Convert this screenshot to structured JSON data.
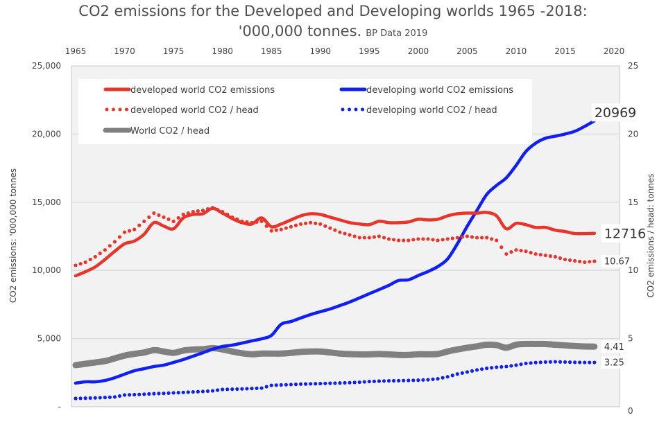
{
  "chart_data": {
    "type": "line",
    "title": "CO2 emissions for the Developed and Developing worlds 1965 -2018:",
    "title_line2": "'000,000 tonnes.",
    "subtitle": "BP Data 2019",
    "xlabel": "",
    "ylabel_left": "CO2 emissions: '000,000 tonnes",
    "ylabel_right": "CO2 emissions / head: tonnes",
    "x_ticks": [
      "1965",
      "1970",
      "1975",
      "1980",
      "1985",
      "1990",
      "1995",
      "2000",
      "2005",
      "2010",
      "2015",
      "2020"
    ],
    "xlim": [
      1965,
      2020
    ],
    "x_axis_position": "top",
    "ylim_left": [
      0,
      25000
    ],
    "y_ticks_left": [
      "-",
      "5,000",
      "10,000",
      "15,000",
      "20,000",
      "25,000"
    ],
    "ylim_right": [
      0,
      25
    ],
    "y_ticks_right": [
      "0",
      "5",
      "10",
      "15",
      "20",
      "25"
    ],
    "grid": true,
    "legend_position": "top-left",
    "x": [
      1965,
      1966,
      1967,
      1968,
      1969,
      1970,
      1971,
      1972,
      1973,
      1974,
      1975,
      1976,
      1977,
      1978,
      1979,
      1980,
      1981,
      1982,
      1983,
      1984,
      1985,
      1986,
      1987,
      1988,
      1989,
      1990,
      1991,
      1992,
      1993,
      1994,
      1995,
      1996,
      1997,
      1998,
      1999,
      2000,
      2001,
      2002,
      2003,
      2004,
      2005,
      2006,
      2007,
      2008,
      2009,
      2010,
      2011,
      2012,
      2013,
      2014,
      2015,
      2016,
      2017,
      2018
    ],
    "series": [
      {
        "name": "developed world CO2 emissions",
        "axis": "left",
        "style": "solid",
        "color": "#e8352a",
        "values": [
          9600,
          9900,
          10250,
          10800,
          11400,
          11950,
          12150,
          12650,
          13500,
          13250,
          13050,
          13850,
          14100,
          14150,
          14550,
          14200,
          13800,
          13500,
          13400,
          13850,
          13200,
          13400,
          13700,
          14000,
          14150,
          14100,
          13900,
          13700,
          13500,
          13400,
          13350,
          13600,
          13500,
          13500,
          13550,
          13750,
          13700,
          13750,
          14000,
          14150,
          14200,
          14200,
          14250,
          14000,
          13050,
          13450,
          13350,
          13150,
          13150,
          12950,
          12850,
          12700,
          12700,
          12716
        ],
        "end_label": "12716"
      },
      {
        "name": "developing world CO2 emissions",
        "axis": "left",
        "style": "solid",
        "color": "#1020f0",
        "values": [
          1730,
          1830,
          1830,
          1930,
          2130,
          2390,
          2640,
          2790,
          2950,
          3050,
          3250,
          3460,
          3710,
          3960,
          4220,
          4420,
          4520,
          4670,
          4830,
          4980,
          5230,
          6050,
          6250,
          6510,
          6760,
          6970,
          7170,
          7420,
          7680,
          7980,
          8290,
          8590,
          8900,
          9260,
          9310,
          9620,
          9920,
          10280,
          10840,
          11950,
          13230,
          14400,
          15570,
          16230,
          16790,
          17700,
          18720,
          19330,
          19690,
          19840,
          20000,
          20200,
          20560,
          20969
        ],
        "end_label": "20969"
      },
      {
        "name": "developed world CO2 / head",
        "axis": "right",
        "style": "dotted",
        "color": "#e8352a",
        "values": [
          10.37,
          10.6,
          11.0,
          11.5,
          12.1,
          12.8,
          13.0,
          13.6,
          14.2,
          13.9,
          13.6,
          14.1,
          14.3,
          14.4,
          14.6,
          14.3,
          13.9,
          13.6,
          13.5,
          13.6,
          12.9,
          13.0,
          13.2,
          13.4,
          13.5,
          13.4,
          13.1,
          12.8,
          12.6,
          12.4,
          12.4,
          12.5,
          12.3,
          12.2,
          12.2,
          12.3,
          12.3,
          12.2,
          12.3,
          12.4,
          12.5,
          12.4,
          12.4,
          12.2,
          11.2,
          11.5,
          11.4,
          11.2,
          11.1,
          11.0,
          10.8,
          10.7,
          10.6,
          10.67
        ],
        "end_label": "10.67"
      },
      {
        "name": "developing world CO2 / head",
        "axis": "right",
        "style": "dotted",
        "color": "#1020f0",
        "values": [
          0.61,
          0.63,
          0.65,
          0.68,
          0.72,
          0.86,
          0.89,
          0.92,
          0.96,
          0.98,
          1.02,
          1.05,
          1.09,
          1.12,
          1.17,
          1.27,
          1.29,
          1.31,
          1.34,
          1.37,
          1.57,
          1.6,
          1.63,
          1.66,
          1.68,
          1.7,
          1.72,
          1.74,
          1.77,
          1.8,
          1.85,
          1.88,
          1.9,
          1.91,
          1.93,
          1.95,
          1.98,
          2.05,
          2.2,
          2.4,
          2.55,
          2.7,
          2.82,
          2.9,
          2.95,
          3.05,
          3.18,
          3.24,
          3.28,
          3.3,
          3.28,
          3.26,
          3.25,
          3.25
        ],
        "end_label": "3.25"
      },
      {
        "name": "World CO2 / head",
        "axis": "right",
        "style": "solid-thick",
        "color": "#808080",
        "values": [
          3.05,
          3.15,
          3.25,
          3.35,
          3.55,
          3.75,
          3.88,
          3.98,
          4.15,
          4.05,
          3.95,
          4.12,
          4.2,
          4.22,
          4.3,
          4.2,
          4.05,
          3.92,
          3.85,
          3.9,
          3.9,
          3.9,
          3.95,
          4.02,
          4.05,
          4.05,
          3.98,
          3.9,
          3.86,
          3.84,
          3.84,
          3.87,
          3.84,
          3.8,
          3.8,
          3.85,
          3.85,
          3.87,
          4.05,
          4.2,
          4.33,
          4.43,
          4.55,
          4.52,
          4.33,
          4.55,
          4.6,
          4.6,
          4.6,
          4.55,
          4.5,
          4.45,
          4.42,
          4.41
        ],
        "end_label": "4.41"
      }
    ]
  },
  "legend": [
    {
      "label": "developed world CO2 emissions",
      "style": "solid",
      "color": "#e8352a"
    },
    {
      "label": "developing world CO2 emissions",
      "style": "solid",
      "color": "#1020f0"
    },
    {
      "label": "developed world CO2 / head",
      "style": "dotted",
      "color": "#e8352a"
    },
    {
      "label": "developing world CO2 / head",
      "style": "dotted",
      "color": "#1020f0"
    },
    {
      "label": "World CO2 / head",
      "style": "solid-thick",
      "color": "#808080"
    }
  ]
}
